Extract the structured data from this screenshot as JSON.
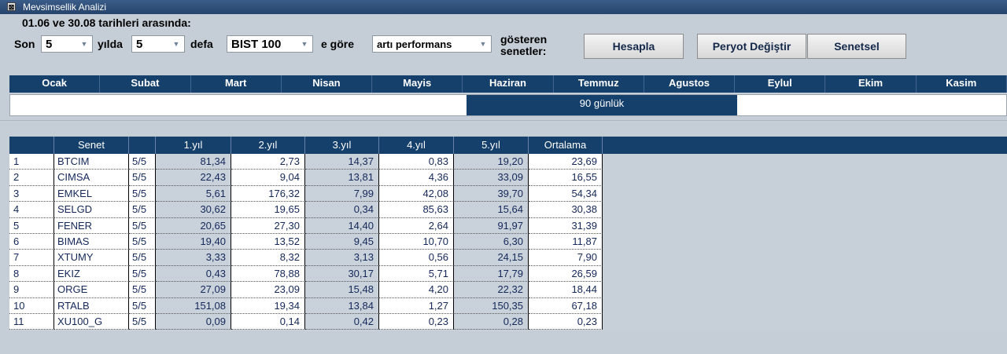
{
  "window": {
    "title": "Mevsimsellik Analizi"
  },
  "header": {
    "date_range": "01.06 ve 30.08 tarihleri arasında:"
  },
  "controls": {
    "son_label": "Son",
    "years_value": "5",
    "yilda_label": "yılda",
    "times_value": "5",
    "defa_label": "defa",
    "index_value": "BIST 100",
    "egore_label": "e göre",
    "performance_value": "artı performans",
    "gosteren_label": "gösteren",
    "senetler_label": "senetler:"
  },
  "buttons": {
    "hesapla": "Hesapla",
    "peryot": "Peryot Değiştir",
    "senetsel": "Senetsel"
  },
  "months": [
    "Ocak",
    "Subat",
    "Mart",
    "Nisan",
    "Mayis",
    "Haziran",
    "Temmuz",
    "Agustos",
    "Eylul",
    "Ekim",
    "Kasim"
  ],
  "period": {
    "label": "90 günlük"
  },
  "table": {
    "headers": [
      "",
      "Senet",
      "",
      "1.yıl",
      "2.yıl",
      "3.yıl",
      "4.yıl",
      "5.yıl",
      "Ortalama"
    ],
    "rows": [
      [
        "1",
        "BTCIM",
        "5/5",
        "81,34",
        "2,73",
        "14,37",
        "0,83",
        "19,20",
        "23,69"
      ],
      [
        "2",
        "CIMSA",
        "5/5",
        "22,43",
        "9,04",
        "13,81",
        "4,36",
        "33,09",
        "16,55"
      ],
      [
        "3",
        "EMKEL",
        "5/5",
        "5,61",
        "176,32",
        "7,99",
        "42,08",
        "39,70",
        "54,34"
      ],
      [
        "4",
        "SELGD",
        "5/5",
        "30,62",
        "19,65",
        "0,34",
        "85,63",
        "15,64",
        "30,38"
      ],
      [
        "5",
        "FENER",
        "5/5",
        "20,65",
        "27,30",
        "14,40",
        "2,64",
        "91,97",
        "31,39"
      ],
      [
        "6",
        "BIMAS",
        "5/5",
        "19,40",
        "13,52",
        "9,45",
        "10,70",
        "6,30",
        "11,87"
      ],
      [
        "7",
        "XTUMY",
        "5/5",
        "3,33",
        "8,32",
        "3,13",
        "0,56",
        "24,15",
        "7,90"
      ],
      [
        "8",
        "EKIZ",
        "5/5",
        "0,43",
        "78,88",
        "30,17",
        "5,71",
        "17,79",
        "26,59"
      ],
      [
        "9",
        "ORGE",
        "5/5",
        "27,09",
        "23,09",
        "15,48",
        "4,20",
        "22,32",
        "18,44"
      ],
      [
        "10",
        "RTALB",
        "5/5",
        "151,08",
        "19,34",
        "13,84",
        "1,27",
        "150,35",
        "67,18"
      ],
      [
        "11",
        "XU100_G",
        "5/5",
        "0,09",
        "0,14",
        "0,42",
        "0,23",
        "0,28",
        "0,23"
      ]
    ]
  }
}
